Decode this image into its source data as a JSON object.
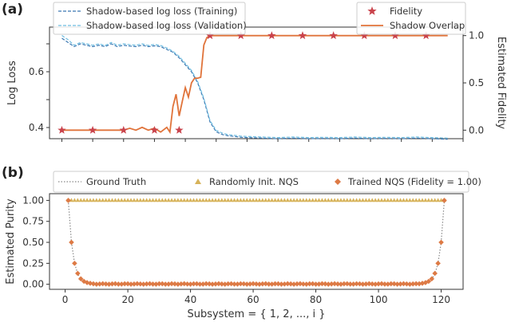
{
  "chart_data": [
    {
      "type": "line",
      "panel_label": "(a)",
      "ylabel_left": "Log Loss",
      "ylabel_right": "Estimated Fidelity",
      "xlim": [
        -4,
        130
      ],
      "ylim_left": [
        0.36,
        0.76
      ],
      "ylim_right": [
        -0.09,
        1.09
      ],
      "x_ticks": [
        0,
        10,
        20,
        30,
        40,
        50,
        60,
        70,
        80,
        90,
        100,
        110,
        120,
        130
      ],
      "y_ticks_left": [
        0.4,
        0.6
      ],
      "y_ticks_right": [
        0.0,
        0.5,
        1.0
      ],
      "legend_left": [
        "Shadow-based log loss (Training)",
        "Shadow-based log loss (Validation)"
      ],
      "legend_right": [
        "Fidelity",
        "Shadow Overlap"
      ],
      "series": [
        {
          "name": "Shadow-based log loss (Training)",
          "axis": "left",
          "color": "#3b78b2",
          "x": [
            0,
            2,
            4,
            6,
            8,
            10,
            12,
            14,
            16,
            18,
            20,
            22,
            24,
            26,
            28,
            30,
            32,
            34,
            36,
            38,
            40,
            42,
            44,
            46,
            48,
            50,
            52,
            54,
            56,
            58,
            60,
            65,
            70,
            75,
            80,
            85,
            90,
            95,
            100,
            105,
            110,
            115,
            120,
            125
          ],
          "values": [
            0.72,
            0.705,
            0.69,
            0.7,
            0.695,
            0.69,
            0.695,
            0.69,
            0.7,
            0.69,
            0.695,
            0.692,
            0.69,
            0.695,
            0.69,
            0.693,
            0.69,
            0.68,
            0.67,
            0.65,
            0.625,
            0.6,
            0.56,
            0.5,
            0.42,
            0.385,
            0.375,
            0.37,
            0.368,
            0.365,
            0.364,
            0.362,
            0.36,
            0.362,
            0.36,
            0.361,
            0.36,
            0.362,
            0.36,
            0.361,
            0.36,
            0.362,
            0.36,
            0.358
          ]
        },
        {
          "name": "Shadow-based log loss (Validation)",
          "axis": "left",
          "color": "#6fbde0",
          "x": [
            0,
            2,
            4,
            6,
            8,
            10,
            12,
            14,
            16,
            18,
            20,
            22,
            24,
            26,
            28,
            30,
            32,
            34,
            36,
            38,
            40,
            42,
            44,
            46,
            48,
            50,
            52,
            54,
            56,
            58,
            60,
            65,
            70,
            75,
            80,
            85,
            90,
            95,
            100,
            105,
            110,
            115,
            120,
            125
          ],
          "values": [
            0.73,
            0.715,
            0.695,
            0.705,
            0.7,
            0.695,
            0.7,
            0.694,
            0.705,
            0.695,
            0.7,
            0.697,
            0.695,
            0.7,
            0.694,
            0.698,
            0.694,
            0.685,
            0.673,
            0.655,
            0.63,
            0.605,
            0.565,
            0.505,
            0.425,
            0.39,
            0.38,
            0.374,
            0.372,
            0.369,
            0.368,
            0.366,
            0.364,
            0.366,
            0.364,
            0.365,
            0.364,
            0.366,
            0.364,
            0.365,
            0.364,
            0.366,
            0.364,
            0.362
          ]
        },
        {
          "name": "Shadow Overlap",
          "axis": "right",
          "color": "#e0733a",
          "x": [
            0,
            4,
            8,
            12,
            16,
            20,
            22,
            24,
            26,
            28,
            30,
            32,
            34,
            35,
            36,
            37,
            38,
            39,
            40,
            41,
            42,
            43,
            44,
            45,
            46,
            47,
            48,
            50,
            55,
            60,
            70,
            80,
            90,
            100,
            110,
            120,
            125
          ],
          "values": [
            0.0,
            0.0,
            0.0,
            0.0,
            0.0,
            0.0,
            0.02,
            0.0,
            0.03,
            0.0,
            0.02,
            -0.02,
            0.03,
            -0.02,
            0.25,
            0.38,
            0.15,
            0.3,
            0.45,
            0.35,
            0.5,
            0.55,
            0.55,
            0.56,
            0.9,
            0.98,
            1.0,
            1.0,
            1.0,
            1.0,
            1.0,
            1.0,
            1.0,
            1.0,
            1.0,
            1.0,
            1.0
          ]
        },
        {
          "name": "Fidelity",
          "axis": "right",
          "type": "scatter",
          "color": "#c9434c",
          "x": [
            0,
            10,
            20,
            30,
            38,
            48,
            58,
            68,
            78,
            88,
            98,
            108,
            118
          ],
          "values": [
            0.0,
            0.0,
            0.0,
            0.0,
            0.0,
            1.0,
            1.0,
            1.0,
            1.0,
            1.0,
            1.0,
            1.0,
            1.0
          ]
        }
      ]
    },
    {
      "type": "scatter",
      "panel_label": "(b)",
      "xlabel": "Subsystem = { 1, 2, ..., i }",
      "ylabel": "Estimated Purity",
      "xlim": [
        -5,
        127
      ],
      "ylim": [
        -0.06,
        1.08
      ],
      "x_ticks": [
        0,
        20,
        40,
        60,
        80,
        100,
        120
      ],
      "y_ticks": [
        0.0,
        0.25,
        0.5,
        0.75,
        1.0
      ],
      "legend": [
        "Ground Truth",
        "Randomly Init. NQS",
        "Trained NQS (Fidelity = 1.00)"
      ],
      "series": [
        {
          "name": "Ground Truth",
          "type": "line",
          "color": "#888888",
          "x": [
            1,
            2,
            3,
            4,
            5,
            6,
            8,
            10,
            15,
            20,
            40,
            60,
            80,
            100,
            107,
            112,
            114,
            115,
            116,
            117,
            118,
            119,
            120,
            121
          ],
          "values": [
            1.0,
            0.5,
            0.25,
            0.125,
            0.0625,
            0.03125,
            0.008,
            0.002,
            0.0,
            0.0,
            0.0,
            0.0,
            0.0,
            0.0,
            0.0,
            0.002,
            0.008,
            0.0156,
            0.03125,
            0.0625,
            0.125,
            0.25,
            0.5,
            1.0
          ]
        },
        {
          "name": "Randomly Init. NQS",
          "type": "scatter",
          "marker": "triangle",
          "color": "#d7b35a",
          "x_range": [
            1,
            121
          ],
          "value": 1.0
        },
        {
          "name": "Trained NQS (Fidelity = 1.00)",
          "type": "scatter",
          "marker": "diamond",
          "color": "#dd7a45",
          "x_range": [
            1,
            121
          ],
          "values": [
            1.0,
            0.5,
            0.25,
            0.13,
            0.065,
            0.035,
            0.02,
            0.012,
            0.006
          ]
        }
      ]
    }
  ]
}
